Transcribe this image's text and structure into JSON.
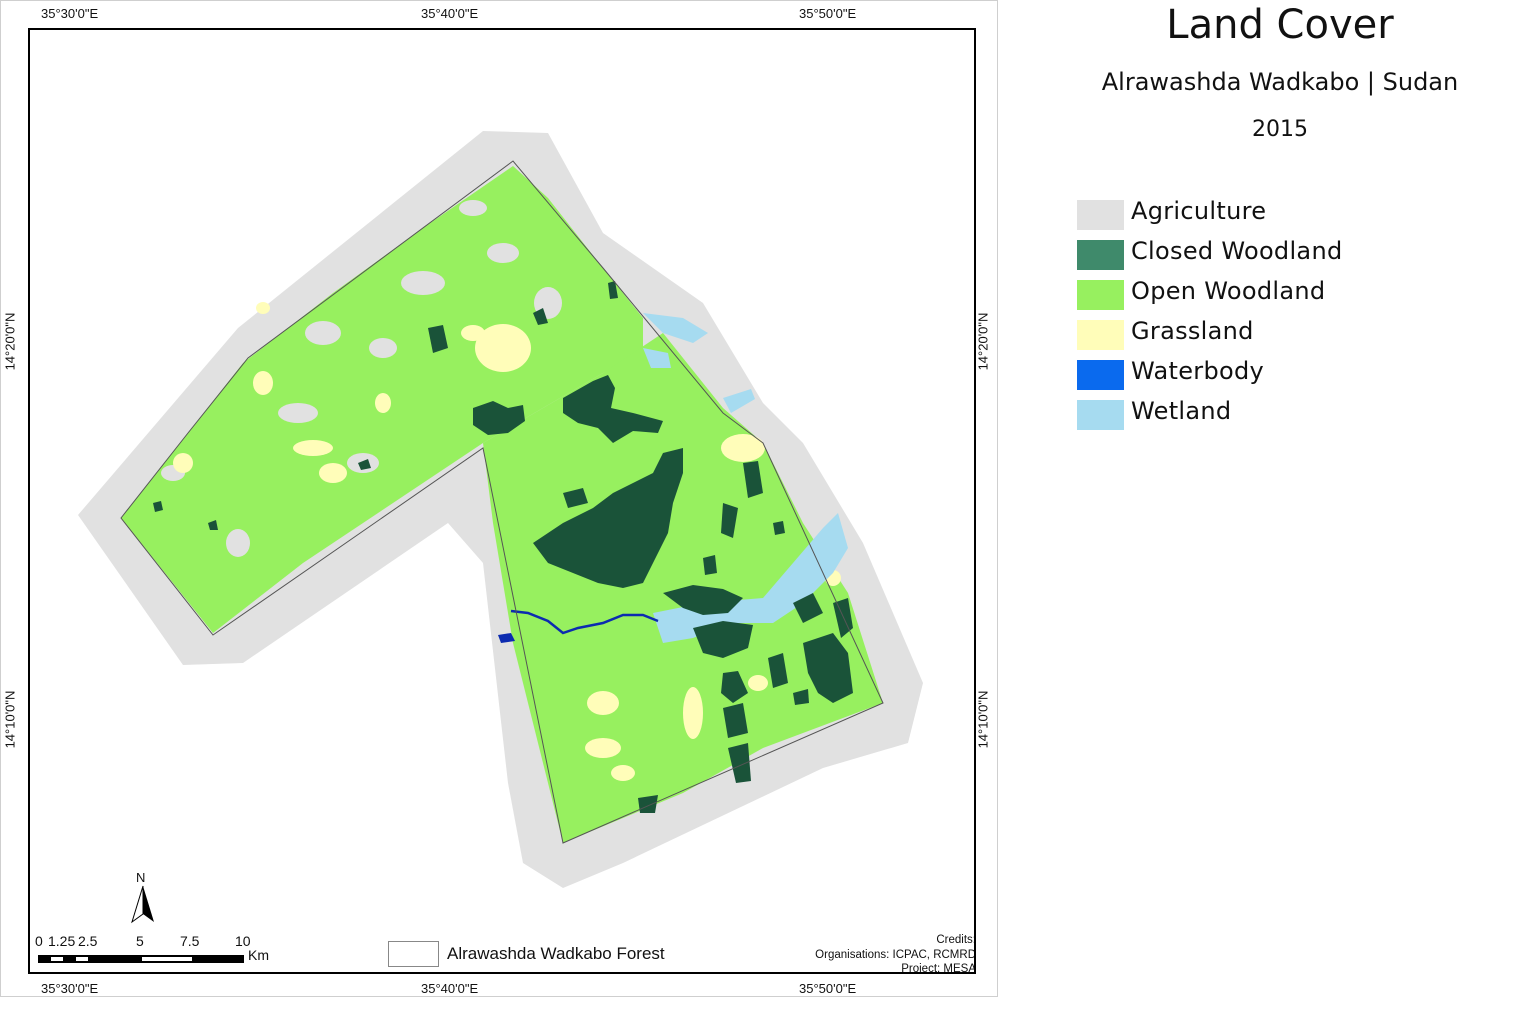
{
  "title": "Land Cover",
  "subtitle": "Alrawashda Wadkabo | Sudan",
  "year": "2015",
  "legend": [
    {
      "label": "Agriculture",
      "color": "#e1e1e1"
    },
    {
      "label": "Closed Woodland",
      "color": "#3f8a6b"
    },
    {
      "label": "Open Woodland",
      "color": "#97f05f"
    },
    {
      "label": "Grassland",
      "color": "#fffdb9"
    },
    {
      "label": "Waterbody",
      "color": "#0a6aee"
    },
    {
      "label": "Wetland",
      "color": "#a6dbf0"
    }
  ],
  "map_colors": {
    "closed_woodland_fill": "#1a5339",
    "river": "#0c2bb0"
  },
  "coords": {
    "top": [
      "35°30'0\"E",
      "35°40'0\"E",
      "35°50'0\"E"
    ],
    "bottom": [
      "35°30'0\"E",
      "35°40'0\"E",
      "35°50'0\"E"
    ],
    "left": [
      "14°20'0\"N",
      "14°10'0\"N"
    ],
    "right": [
      "14°20'0\"N",
      "14°10'0\"N"
    ]
  },
  "north_arrow": "N",
  "scale_bar": {
    "ticks": [
      "0",
      "1.25",
      "2.5",
      "5",
      "7.5",
      "10"
    ],
    "unit": "Km"
  },
  "forest_legend_label": "Alrawashda Wadkabo Forest",
  "credits": {
    "heading": "Credits:",
    "organisations": "Organisations: ICPAC, RCMRD",
    "project": "Project: MESA"
  }
}
